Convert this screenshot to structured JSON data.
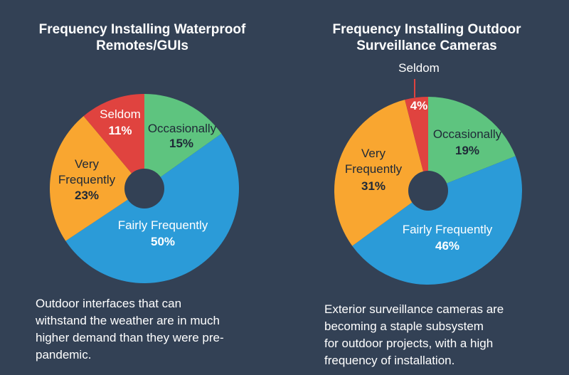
{
  "background": "#334155",
  "colors": {
    "fairly_frequently": "#2b9bd8",
    "very_frequently": "#f9a630",
    "seldom": "#e0433f",
    "occasionally": "#5ec47f",
    "hole": "#334155",
    "label_dark": "#1f2937",
    "label_white": "#ffffff"
  },
  "chart_data": [
    {
      "type": "pie",
      "title_lines": [
        "Frequency Installing Waterproof",
        "Remotes/GUIs"
      ],
      "slices": [
        {
          "label": "Occasionally",
          "value": 15,
          "text": "15%",
          "color": "#5ec47f"
        },
        {
          "label": "Fairly Frequently",
          "value": 50,
          "text": "50%",
          "color": "#2b9bd8"
        },
        {
          "label": "Very Frequently",
          "label_lines": [
            "Very",
            "Frequently"
          ],
          "value": 23,
          "text": "23%",
          "color": "#f9a630"
        },
        {
          "label": "Seldom",
          "value": 11,
          "text": "11%",
          "color": "#e0433f"
        }
      ],
      "caption_lines": [
        "Outdoor interfaces that can",
        "withstand the weather are in much",
        "higher demand than they were pre-",
        "pandemic."
      ]
    },
    {
      "type": "pie",
      "title_lines": [
        "Frequency Installing Outdoor",
        "Surveillance Cameras"
      ],
      "slices": [
        {
          "label": "Occasionally",
          "value": 19,
          "text": "19%",
          "color": "#5ec47f"
        },
        {
          "label": "Fairly Frequently",
          "value": 46,
          "text": "46%",
          "color": "#2b9bd8"
        },
        {
          "label": "Very Frequently",
          "label_lines": [
            "Very",
            "Frequently"
          ],
          "value": 31,
          "text": "31%",
          "color": "#f9a630"
        },
        {
          "label": "Seldom",
          "value": 4,
          "text": "4%",
          "color": "#e0433f"
        }
      ],
      "caption_lines": [
        "Exterior surveillance cameras are",
        "becoming a staple subsystem",
        "for outdoor projects, with a high",
        "frequency of installation."
      ]
    }
  ]
}
